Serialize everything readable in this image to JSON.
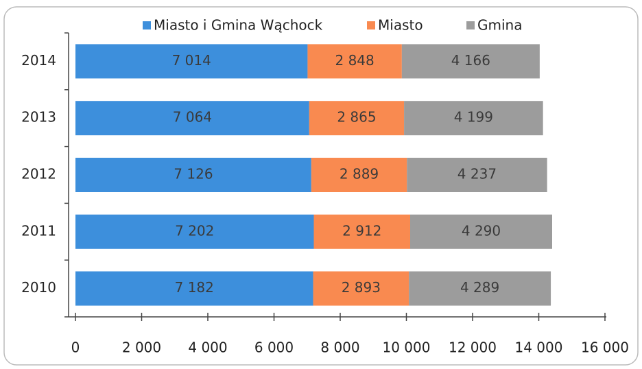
{
  "chart_data": {
    "type": "stacked-barh",
    "categories": [
      "2014",
      "2013",
      "2012",
      "2011",
      "2010"
    ],
    "series": [
      {
        "name": "Miasto i Gmina Wąchock",
        "color": "#3d8fdc",
        "values": [
          7014,
          7064,
          7126,
          7202,
          7182
        ],
        "value_labels": [
          "7 014",
          "7 064",
          "7 126",
          "7 202",
          "7 182"
        ]
      },
      {
        "name": "Miasto",
        "color": "#f98a50",
        "values": [
          2848,
          2865,
          2889,
          2912,
          2893
        ],
        "value_labels": [
          "2 848",
          "2 865",
          "2 889",
          "2 912",
          "2 893"
        ]
      },
      {
        "name": "Gmina",
        "color": "#9c9c9c",
        "values": [
          4166,
          4199,
          4237,
          4290,
          4289
        ],
        "value_labels": [
          "4 166",
          "4 199",
          "4 237",
          "4 290",
          "4 289"
        ]
      }
    ],
    "xlim": [
      0,
      16000
    ],
    "xticks": [
      0,
      {
        "value": 2000,
        "label": "2 000"
      },
      {
        "value": 4000,
        "label": "4 000"
      },
      {
        "value": 6000,
        "label": "6 000"
      },
      {
        "value": 8000,
        "label": "8 000"
      },
      {
        "value": 10000,
        "label": "10 000"
      },
      {
        "value": 12000,
        "label": "12 000"
      },
      {
        "value": 14000,
        "label": "14 000"
      },
      {
        "value": 16000,
        "label": "16 000"
      }
    ],
    "legend": "top"
  }
}
